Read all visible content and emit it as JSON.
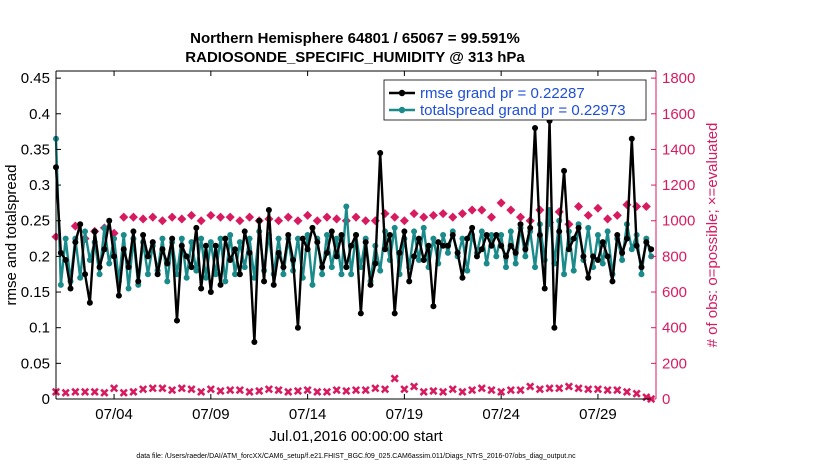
{
  "chart_data": {
    "type": "line",
    "title": "Northern Hemisphere 64801 / 65067 = 99.591%",
    "subtitle": "RADIOSONDE_SPECIFIC_HUMIDITY @ 313 hPa",
    "xlabel": "Jul.01,2016 00:00:00 start",
    "ylabel_left": "rmse and totalspread",
    "ylabel_right": "# of obs: o=possible; ×=evaluated",
    "footer": "data file: /Users/raeder/DAI/ATM_forcXX/CAM6_setup/f.e21.FHIST_BGC.f09_025.CAM6assim.011/Diags_NTrS_2016-07/obs_diag_output.nc",
    "x_range": [
      1,
      32
    ],
    "ylim_left": [
      0,
      0.46
    ],
    "ylim_right": [
      0,
      1840
    ],
    "x_tick_values": [
      4,
      9,
      14,
      19,
      24,
      29
    ],
    "x_tick_labels": [
      "07/04",
      "07/09",
      "07/14",
      "07/19",
      "07/24",
      "07/29"
    ],
    "y_left_ticks": [
      "0",
      "0.05",
      "0.1",
      "0.15",
      "0.2",
      "0.25",
      "0.3",
      "0.35",
      "0.4",
      "0.45"
    ],
    "y_right_ticks": [
      "0",
      "200",
      "400",
      "600",
      "800",
      "1000",
      "1200",
      "1400",
      "1600",
      "1800"
    ],
    "colors": {
      "rmse": "#000000",
      "totalspread": "#1a8a8a",
      "obs": "#d81b60",
      "legend_text": "#1f4fd8"
    },
    "legend": {
      "location": "top-right",
      "entries": [
        "rmse grand pr = 0.22287",
        "totalspread grand pr = 0.22973"
      ]
    },
    "series": [
      {
        "name": "rmse",
        "axis": "left",
        "x": [
          1.0,
          1.25,
          1.5,
          1.75,
          2.0,
          2.25,
          2.5,
          2.75,
          3.0,
          3.25,
          3.5,
          3.75,
          4.0,
          4.25,
          4.5,
          4.75,
          5.0,
          5.25,
          5.5,
          5.75,
          6.0,
          6.25,
          6.5,
          6.75,
          7.0,
          7.25,
          7.5,
          7.75,
          8.0,
          8.25,
          8.5,
          8.75,
          9.0,
          9.25,
          9.5,
          9.75,
          10.0,
          10.25,
          10.5,
          10.75,
          11.0,
          11.25,
          11.5,
          11.75,
          12.0,
          12.25,
          12.5,
          12.75,
          13.0,
          13.25,
          13.5,
          13.75,
          14.0,
          14.25,
          14.5,
          14.75,
          15.0,
          15.25,
          15.5,
          15.75,
          16.0,
          16.25,
          16.5,
          16.75,
          17.0,
          17.25,
          17.5,
          17.75,
          18.0,
          18.25,
          18.5,
          18.75,
          19.0,
          19.25,
          19.5,
          19.75,
          20.0,
          20.25,
          20.5,
          20.75,
          21.0,
          21.25,
          21.5,
          21.75,
          22.0,
          22.25,
          22.5,
          22.75,
          23.0,
          23.25,
          23.5,
          23.75,
          24.0,
          24.25,
          24.5,
          24.75,
          25.0,
          25.25,
          25.5,
          25.75,
          26.0,
          26.25,
          26.5,
          26.75,
          27.0,
          27.25,
          27.5,
          27.75,
          28.0,
          28.25,
          28.5,
          28.75,
          29.0,
          29.25,
          29.5,
          29.75,
          30.0,
          30.25,
          30.5,
          30.75,
          31.0,
          31.25,
          31.5,
          31.75
        ],
        "values": [
          0.325,
          0.205,
          0.195,
          0.155,
          0.22,
          0.245,
          0.175,
          0.135,
          0.235,
          0.185,
          0.21,
          0.25,
          0.2,
          0.145,
          0.21,
          0.185,
          0.235,
          0.165,
          0.23,
          0.2,
          0.22,
          0.175,
          0.21,
          0.19,
          0.225,
          0.11,
          0.215,
          0.2,
          0.185,
          0.24,
          0.155,
          0.215,
          0.15,
          0.215,
          0.16,
          0.225,
          0.195,
          0.21,
          0.175,
          0.235,
          0.205,
          0.08,
          0.25,
          0.165,
          0.265,
          0.16,
          0.205,
          0.185,
          0.23,
          0.195,
          0.1,
          0.225,
          0.21,
          0.24,
          0.22,
          0.185,
          0.205,
          0.235,
          0.2,
          0.23,
          0.185,
          0.215,
          0.23,
          0.12,
          0.22,
          0.16,
          0.19,
          0.345,
          0.21,
          0.23,
          0.12,
          0.205,
          0.235,
          0.165,
          0.2,
          0.225,
          0.195,
          0.215,
          0.13,
          0.22,
          0.215,
          0.215,
          0.23,
          0.205,
          0.17,
          0.225,
          0.24,
          0.2,
          0.21,
          0.23,
          0.215,
          0.23,
          0.215,
          0.2,
          0.215,
          0.205,
          0.245,
          0.21,
          0.24,
          0.38,
          0.23,
          0.155,
          0.39,
          0.1,
          0.235,
          0.32,
          0.21,
          0.225,
          0.24,
          0.2,
          0.17,
          0.2,
          0.195,
          0.22,
          0.2,
          0.165,
          0.23,
          0.205,
          0.225,
          0.365,
          0.215,
          0.185,
          0.22,
          0.21
        ]
      },
      {
        "name": "totalspread",
        "axis": "left",
        "x": [
          1.0,
          1.25,
          1.5,
          1.75,
          2.0,
          2.25,
          2.5,
          2.75,
          3.0,
          3.25,
          3.5,
          3.75,
          4.0,
          4.25,
          4.5,
          4.75,
          5.0,
          5.25,
          5.5,
          5.75,
          6.0,
          6.25,
          6.5,
          6.75,
          7.0,
          7.25,
          7.5,
          7.75,
          8.0,
          8.25,
          8.5,
          8.75,
          9.0,
          9.25,
          9.5,
          9.75,
          10.0,
          10.25,
          10.5,
          10.75,
          11.0,
          11.25,
          11.5,
          11.75,
          12.0,
          12.25,
          12.5,
          12.75,
          13.0,
          13.25,
          13.5,
          13.75,
          14.0,
          14.25,
          14.5,
          14.75,
          15.0,
          15.25,
          15.5,
          15.75,
          16.0,
          16.25,
          16.5,
          16.75,
          17.0,
          17.25,
          17.5,
          17.75,
          18.0,
          18.25,
          18.5,
          18.75,
          19.0,
          19.25,
          19.5,
          19.75,
          20.0,
          20.25,
          20.5,
          20.75,
          21.0,
          21.25,
          21.5,
          21.75,
          22.0,
          22.25,
          22.5,
          22.75,
          23.0,
          23.25,
          23.5,
          23.75,
          24.0,
          24.25,
          24.5,
          24.75,
          25.0,
          25.25,
          25.5,
          25.75,
          26.0,
          26.25,
          26.5,
          26.75,
          27.0,
          27.25,
          27.5,
          27.75,
          28.0,
          28.25,
          28.5,
          28.75,
          29.0,
          29.25,
          29.5,
          29.75,
          30.0,
          30.25,
          30.5,
          30.75,
          31.0,
          31.25,
          31.5,
          31.75
        ],
        "values": [
          0.365,
          0.16,
          0.225,
          0.165,
          0.225,
          0.17,
          0.235,
          0.195,
          0.22,
          0.175,
          0.24,
          0.19,
          0.225,
          0.165,
          0.23,
          0.155,
          0.225,
          0.16,
          0.22,
          0.175,
          0.215,
          0.18,
          0.225,
          0.165,
          0.22,
          0.175,
          0.225,
          0.17,
          0.22,
          0.18,
          0.225,
          0.17,
          0.22,
          0.175,
          0.225,
          0.165,
          0.23,
          0.175,
          0.22,
          0.185,
          0.225,
          0.17,
          0.235,
          0.18,
          0.23,
          0.175,
          0.225,
          0.175,
          0.225,
          0.18,
          0.225,
          0.17,
          0.23,
          0.16,
          0.225,
          0.175,
          0.23,
          0.185,
          0.225,
          0.175,
          0.27,
          0.175,
          0.23,
          0.185,
          0.225,
          0.165,
          0.215,
          0.18,
          0.235,
          0.195,
          0.24,
          0.175,
          0.225,
          0.185,
          0.235,
          0.195,
          0.24,
          0.185,
          0.225,
          0.19,
          0.23,
          0.205,
          0.235,
          0.2,
          0.225,
          0.18,
          0.23,
          0.205,
          0.235,
          0.19,
          0.23,
          0.2,
          0.23,
          0.185,
          0.235,
          0.19,
          0.24,
          0.2,
          0.235,
          0.185,
          0.245,
          0.195,
          0.265,
          0.19,
          0.25,
          0.175,
          0.235,
          0.18,
          0.245,
          0.195,
          0.24,
          0.185,
          0.23,
          0.19,
          0.235,
          0.175,
          0.225,
          0.195,
          0.245,
          0.21,
          0.23,
          0.175,
          0.225,
          0.2
        ]
      },
      {
        "name": "obs possible",
        "axis": "right",
        "marker": "o",
        "x": [
          1.0,
          2.0,
          2.5,
          3.0,
          3.5,
          4.0,
          4.5,
          5.0,
          5.5,
          6.0,
          6.5,
          7.0,
          7.5,
          8.0,
          8.5,
          9.0,
          9.5,
          10.0,
          10.5,
          11.0,
          11.5,
          12.0,
          12.5,
          13.0,
          13.5,
          14.0,
          14.5,
          15.0,
          15.5,
          16.0,
          16.5,
          17.0,
          17.5,
          18.0,
          18.5,
          19.0,
          19.5,
          20.0,
          20.5,
          21.0,
          21.5,
          22.0,
          22.5,
          23.0,
          23.5,
          24.0,
          24.5,
          25.0,
          25.5,
          26.0,
          26.5,
          27.0,
          27.5,
          28.0,
          28.5,
          29.0,
          29.5,
          30.0,
          30.5,
          31.0,
          31.5
        ],
        "values": [
          910,
          970,
          900,
          940,
          960,
          930,
          1020,
          1020,
          1010,
          1020,
          1000,
          1020,
          1010,
          1030,
          1000,
          1030,
          1020,
          1020,
          1000,
          1020,
          1000,
          1010,
          1000,
          1020,
          1000,
          1030,
          1000,
          1020,
          1010,
          1000,
          1020,
          1000,
          1000,
          1040,
          1020,
          1000,
          1040,
          1020,
          1030,
          1040,
          1020,
          1040,
          1060,
          1060,
          1020,
          1100,
          1060,
          1020,
          1000,
          1060,
          990,
          1050,
          980,
          1080,
          1030,
          1070,
          1010,
          1030,
          1090,
          1080,
          1080
        ]
      },
      {
        "name": "obs evaluated",
        "axis": "right",
        "marker": "x",
        "x": [
          1.0,
          1.5,
          2.0,
          2.5,
          3.0,
          3.5,
          4.0,
          4.5,
          5.0,
          5.5,
          6.0,
          6.5,
          7.0,
          7.5,
          8.0,
          8.5,
          9.0,
          9.5,
          10.0,
          10.5,
          11.0,
          11.5,
          12.0,
          12.5,
          13.0,
          13.5,
          14.0,
          14.5,
          15.0,
          15.5,
          16.0,
          16.5,
          17.0,
          17.5,
          18.0,
          18.5,
          19.0,
          19.5,
          20.0,
          20.5,
          21.0,
          21.5,
          22.0,
          22.5,
          23.0,
          23.5,
          24.0,
          24.5,
          25.0,
          25.5,
          26.0,
          26.5,
          27.0,
          27.5,
          28.0,
          28.5,
          29.0,
          29.5,
          30.0,
          30.5,
          31.0,
          31.5,
          31.75
        ],
        "values": [
          40,
          35,
          40,
          40,
          40,
          35,
          60,
          35,
          40,
          55,
          60,
          60,
          50,
          60,
          55,
          40,
          55,
          45,
          50,
          50,
          40,
          45,
          55,
          50,
          40,
          45,
          50,
          40,
          40,
          50,
          45,
          50,
          50,
          60,
          55,
          115,
          55,
          70,
          40,
          45,
          40,
          55,
          40,
          50,
          60,
          50,
          40,
          50,
          50,
          70,
          55,
          60,
          60,
          70,
          60,
          55,
          55,
          50,
          50,
          40,
          30,
          10,
          0
        ]
      }
    ]
  }
}
